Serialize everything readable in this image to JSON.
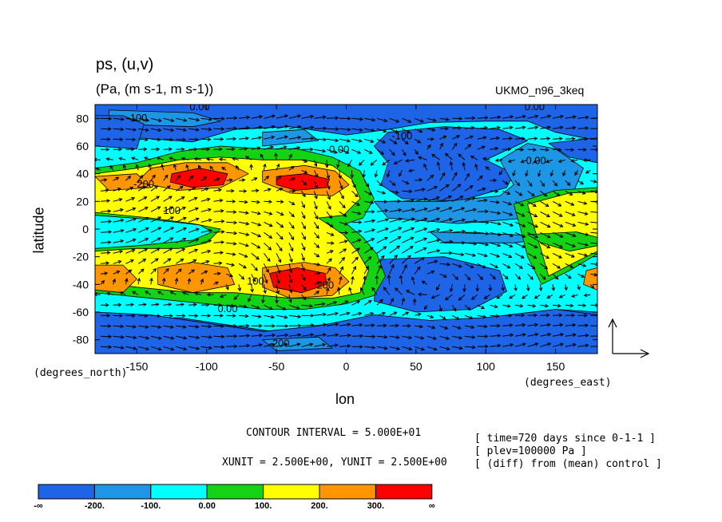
{
  "chart_data": {
    "type": "heatmap",
    "title": "ps, (u,v)",
    "subtitle": "(Pa, (m s-1, m s-1))",
    "dataset": "UKMO_n96_3keq",
    "xlabel": "lon",
    "ylabel": "latitude",
    "x_unit": "(degrees_east)",
    "y_unit": "(degrees_north)",
    "xlim": [
      -180,
      180
    ],
    "ylim": [
      -90,
      90
    ],
    "x_ticks": [
      -150,
      -100,
      -50,
      0,
      50,
      100,
      150
    ],
    "y_ticks": [
      80,
      60,
      40,
      20,
      0,
      -20,
      -40,
      -60,
      -80
    ],
    "contour_interval_text": "CONTOUR INTERVAL = 5.000E+01",
    "units_text": "XUNIT = 2.500E+00, YUNIT = 2.500E+00",
    "notes": [
      "[ time=720 days since 0-1-1 ]",
      "[ plev=100000 Pa ]",
      "[ (diff) from (mean) control ]"
    ],
    "contour_labels": [
      {
        "text": "0.00",
        "x": -105,
        "y": 86
      },
      {
        "text": "0.00",
        "x": 135,
        "y": 86
      },
      {
        "text": "-100",
        "x": -150,
        "y": 78
      },
      {
        "text": "-100",
        "x": 40,
        "y": 65
      },
      {
        "text": "0.00",
        "x": -5,
        "y": 55
      },
      {
        "text": "0.00",
        "x": 136,
        "y": 47
      },
      {
        "text": "-200",
        "x": -145,
        "y": 30
      },
      {
        "text": "100",
        "x": -125,
        "y": 11
      },
      {
        "text": "100",
        "x": -65,
        "y": -40
      },
      {
        "text": "200",
        "x": -15,
        "y": -43
      },
      {
        "text": "0.00",
        "x": -85,
        "y": -60
      },
      {
        "text": "-200",
        "x": -48,
        "y": -85
      }
    ],
    "colorbar": {
      "levels": [
        "-∞",
        "-200.",
        "-100.",
        "0.00",
        "100.",
        "200.",
        "300.",
        "∞"
      ],
      "colors": [
        "#1e64e6",
        "#1e96e6",
        "#00ffff",
        "#14d214",
        "#ffff00",
        "#ff9600",
        "#ff0000"
      ]
    },
    "regions": [
      {
        "level": 0,
        "pts": [
          [
            -180,
            90
          ],
          [
            180,
            90
          ],
          [
            180,
            -90
          ],
          [
            -180,
            -90
          ]
        ]
      },
      {
        "level": 2,
        "pts": [
          [
            -180,
            -62
          ],
          [
            -180,
            62
          ],
          [
            -150,
            66
          ],
          [
            -110,
            63
          ],
          [
            -80,
            72
          ],
          [
            -40,
            74
          ],
          [
            0,
            68
          ],
          [
            30,
            72
          ],
          [
            60,
            77
          ],
          [
            100,
            78
          ],
          [
            130,
            78
          ],
          [
            150,
            70
          ],
          [
            180,
            64
          ],
          [
            180,
            -60
          ],
          [
            150,
            -58
          ],
          [
            110,
            -64
          ],
          [
            60,
            -70
          ],
          [
            20,
            -66
          ],
          [
            -10,
            -72
          ],
          [
            -40,
            -76
          ],
          [
            -80,
            -70
          ],
          [
            -120,
            -64
          ],
          [
            -150,
            -66
          ]
        ]
      },
      {
        "level": 1,
        "pts": [
          [
            -170,
            86
          ],
          [
            -110,
            84
          ],
          [
            -90,
            78
          ],
          [
            -110,
            74
          ],
          [
            -170,
            76
          ]
        ]
      },
      {
        "level": 1,
        "pts": [
          [
            -60,
            70
          ],
          [
            -30,
            72
          ],
          [
            -20,
            64
          ],
          [
            -60,
            60
          ]
        ]
      },
      {
        "level": 0,
        "pts": [
          [
            -180,
            82
          ],
          [
            -160,
            82
          ],
          [
            -145,
            76
          ],
          [
            -150,
            58
          ],
          [
            -180,
            60
          ]
        ]
      },
      {
        "level": 0,
        "pts": [
          [
            30,
            70
          ],
          [
            70,
            74
          ],
          [
            110,
            72
          ],
          [
            130,
            64
          ],
          [
            100,
            50
          ],
          [
            120,
            40
          ],
          [
            115,
            30
          ],
          [
            80,
            20
          ],
          [
            40,
            22
          ],
          [
            25,
            32
          ],
          [
            30,
            48
          ],
          [
            20,
            60
          ]
        ]
      },
      {
        "level": 0,
        "pts": [
          [
            145,
            62
          ],
          [
            180,
            66
          ],
          [
            180,
            48
          ],
          [
            160,
            52
          ]
        ]
      },
      {
        "level": 1,
        "pts": [
          [
            20,
            20
          ],
          [
            70,
            20
          ],
          [
            110,
            24
          ],
          [
            120,
            32
          ],
          [
            110,
            50
          ],
          [
            130,
            62
          ],
          [
            150,
            58
          ],
          [
            170,
            44
          ],
          [
            160,
            20
          ],
          [
            130,
            8
          ],
          [
            80,
            4
          ],
          [
            30,
            8
          ]
        ]
      },
      {
        "level": 1,
        "pts": [
          [
            60,
            -2
          ],
          [
            120,
            -4
          ],
          [
            150,
            -6
          ],
          [
            120,
            -10
          ],
          [
            70,
            -10
          ]
        ]
      },
      {
        "level": 0,
        "pts": [
          [
            25,
            -22
          ],
          [
            70,
            -20
          ],
          [
            110,
            -30
          ],
          [
            115,
            -45
          ],
          [
            90,
            -58
          ],
          [
            50,
            -60
          ],
          [
            20,
            -52
          ],
          [
            22,
            -34
          ]
        ]
      },
      {
        "level": 0,
        "pts": [
          [
            -180,
            -60
          ],
          [
            -140,
            -62
          ],
          [
            -100,
            -68
          ],
          [
            -60,
            -74
          ],
          [
            -20,
            -70
          ],
          [
            20,
            -62
          ],
          [
            60,
            -66
          ],
          [
            100,
            -64
          ],
          [
            150,
            -58
          ],
          [
            180,
            -62
          ],
          [
            180,
            -90
          ],
          [
            -180,
            -90
          ]
        ]
      },
      {
        "level": 1,
        "pts": [
          [
            -60,
            -80
          ],
          [
            -20,
            -78
          ],
          [
            -10,
            -86
          ],
          [
            -50,
            -88
          ]
        ]
      },
      {
        "level": 3,
        "pts": [
          [
            -180,
            44
          ],
          [
            -150,
            48
          ],
          [
            -120,
            56
          ],
          [
            -90,
            60
          ],
          [
            -60,
            58
          ],
          [
            -35,
            58
          ],
          [
            -10,
            52
          ],
          [
            10,
            42
          ],
          [
            20,
            22
          ],
          [
            12,
            8
          ],
          [
            0,
            4
          ],
          [
            12,
            -6
          ],
          [
            22,
            -18
          ],
          [
            28,
            -34
          ],
          [
            20,
            -48
          ],
          [
            0,
            -54
          ],
          [
            -30,
            -58
          ],
          [
            -60,
            -58
          ],
          [
            -100,
            -54
          ],
          [
            -140,
            -50
          ],
          [
            -180,
            -46
          ]
        ]
      },
      {
        "level": 3,
        "pts": [
          [
            120,
            18
          ],
          [
            150,
            28
          ],
          [
            180,
            30
          ],
          [
            180,
            -18
          ],
          [
            160,
            -30
          ],
          [
            140,
            -40
          ],
          [
            130,
            -20
          ],
          [
            125,
            0
          ]
        ]
      },
      {
        "level": 4,
        "pts": [
          [
            -180,
            40
          ],
          [
            -150,
            44
          ],
          [
            -120,
            50
          ],
          [
            -90,
            52
          ],
          [
            -60,
            50
          ],
          [
            -30,
            50
          ],
          [
            -10,
            46
          ],
          [
            4,
            36
          ],
          [
            10,
            22
          ],
          [
            -2,
            10
          ],
          [
            -20,
            8
          ],
          [
            -2,
            -4
          ],
          [
            8,
            -16
          ],
          [
            16,
            -30
          ],
          [
            10,
            -46
          ],
          [
            -10,
            -50
          ],
          [
            -40,
            -50
          ],
          [
            -80,
            -46
          ],
          [
            -110,
            -46
          ],
          [
            -150,
            -42
          ],
          [
            -180,
            -38
          ],
          [
            -180,
            -16
          ],
          [
            -150,
            -14
          ],
          [
            -120,
            -14
          ],
          [
            -100,
            -10
          ],
          [
            -90,
            0
          ],
          [
            -110,
            4
          ],
          [
            -140,
            8
          ],
          [
            -180,
            12
          ]
        ]
      },
      {
        "level": 2,
        "pts": [
          [
            -180,
            10
          ],
          [
            -140,
            7
          ],
          [
            -105,
            3
          ],
          [
            -96,
            -2
          ],
          [
            -110,
            -8
          ],
          [
            -150,
            -12
          ],
          [
            -180,
            -14
          ]
        ]
      },
      {
        "level": 4,
        "pts": [
          [
            130,
            18
          ],
          [
            160,
            26
          ],
          [
            180,
            27
          ],
          [
            180,
            -16
          ],
          [
            160,
            -26
          ],
          [
            145,
            -34
          ],
          [
            140,
            -16
          ],
          [
            135,
            0
          ]
        ]
      },
      {
        "level": 3,
        "pts": [
          [
            130,
            -4
          ],
          [
            165,
            -2
          ],
          [
            180,
            -6
          ],
          [
            180,
            -12
          ],
          [
            160,
            -16
          ],
          [
            140,
            -10
          ]
        ]
      },
      {
        "level": 5,
        "pts": [
          [
            -180,
            38
          ],
          [
            -150,
            40
          ],
          [
            -140,
            30
          ],
          [
            -170,
            28
          ]
        ]
      },
      {
        "level": 5,
        "pts": [
          [
            -140,
            44
          ],
          [
            -115,
            48
          ],
          [
            -85,
            48
          ],
          [
            -70,
            40
          ],
          [
            -90,
            30
          ],
          [
            -120,
            28
          ],
          [
            -150,
            34
          ]
        ]
      },
      {
        "level": 5,
        "pts": [
          [
            -60,
            42
          ],
          [
            -30,
            46
          ],
          [
            -8,
            42
          ],
          [
            2,
            32
          ],
          [
            -10,
            24
          ],
          [
            -40,
            26
          ],
          [
            -60,
            34
          ]
        ]
      },
      {
        "level": 5,
        "pts": [
          [
            -180,
            -26
          ],
          [
            -160,
            -26
          ],
          [
            -150,
            -36
          ],
          [
            -160,
            -46
          ],
          [
            -180,
            -44
          ]
        ]
      },
      {
        "level": 5,
        "pts": [
          [
            -135,
            -28
          ],
          [
            -110,
            -24
          ],
          [
            -85,
            -28
          ],
          [
            -80,
            -40
          ],
          [
            -110,
            -46
          ],
          [
            -135,
            -40
          ]
        ]
      },
      {
        "level": 5,
        "pts": [
          [
            -60,
            -28
          ],
          [
            -30,
            -24
          ],
          [
            -8,
            -28
          ],
          [
            2,
            -38
          ],
          [
            -10,
            -48
          ],
          [
            -40,
            -50
          ],
          [
            -60,
            -42
          ]
        ]
      },
      {
        "level": 5,
        "pts": [
          [
            172,
            -30
          ],
          [
            180,
            -28
          ],
          [
            180,
            -44
          ],
          [
            170,
            -40
          ]
        ]
      },
      {
        "level": 6,
        "pts": [
          [
            -125,
            40
          ],
          [
            -105,
            44
          ],
          [
            -85,
            40
          ],
          [
            -88,
            32
          ],
          [
            -110,
            30
          ],
          [
            -126,
            34
          ]
        ]
      },
      {
        "level": 6,
        "pts": [
          [
            -50,
            38
          ],
          [
            -30,
            40
          ],
          [
            -12,
            36
          ],
          [
            -14,
            30
          ],
          [
            -36,
            28
          ],
          [
            -50,
            32
          ]
        ]
      },
      {
        "level": 6,
        "pts": [
          [
            -55,
            -32
          ],
          [
            -35,
            -28
          ],
          [
            -15,
            -32
          ],
          [
            -14,
            -40
          ],
          [
            -32,
            -46
          ],
          [
            -52,
            -42
          ]
        ]
      }
    ]
  }
}
